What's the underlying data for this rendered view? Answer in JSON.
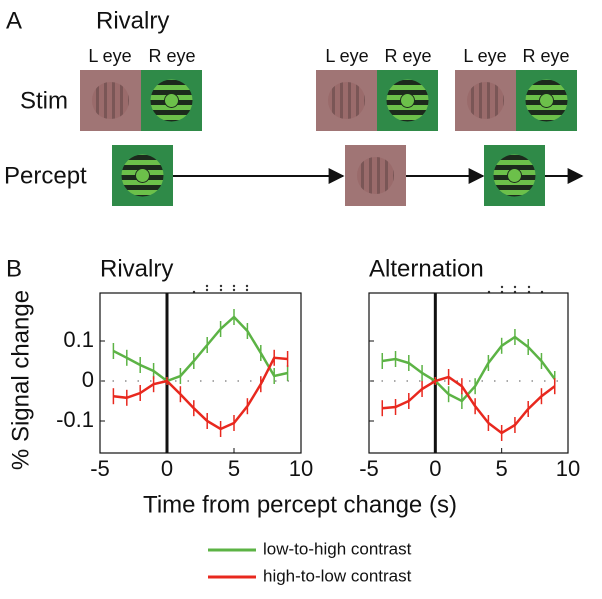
{
  "panel_a": {
    "label": "A",
    "title": "Rivalry",
    "eye_labels": [
      [
        "L eye",
        "R eye"
      ],
      [
        "L eye",
        "R eye"
      ],
      [
        "L eye",
        "R eye"
      ]
    ],
    "row_labels": [
      "Stim",
      "Percept"
    ]
  },
  "panel_b": {
    "label": "B"
  },
  "chart_data": {
    "type": "line",
    "xlabel": "Time from percept change (s)",
    "ylabel": "% Signal change",
    "xlim": [
      -5,
      10
    ],
    "xticks": [
      -5,
      0,
      5,
      10
    ],
    "ylim": [
      -0.18,
      0.22
    ],
    "yticks": [
      -0.1,
      0,
      0.1
    ],
    "x": [
      -4,
      -3,
      -2,
      -1,
      0,
      1,
      2,
      3,
      4,
      5,
      6,
      7,
      8,
      9
    ],
    "series": [
      {
        "name": "low-to-high contrast",
        "color": "#5cb345"
      },
      {
        "name": "high-to-low contrast",
        "color": "#e8281e"
      }
    ],
    "panels": [
      {
        "title": "Rivalry",
        "series": [
          {
            "values": [
              0.075,
              0.058,
              0.04,
              0.025,
              0,
              0.0125,
              0.05,
              0.09,
              0.13,
              0.16,
              0.125,
              0.07,
              0.0125,
              0.02
            ],
            "errors": [
              0.02,
              0.02,
              0.02,
              0.02,
              0.01,
              0.02,
              0.02,
              0.02,
              0.02,
              0.02,
              0.02,
              0.02,
              0.02,
              0.02
            ]
          },
          {
            "values": [
              -0.038,
              -0.042,
              -0.03,
              -0.008,
              0,
              -0.033,
              -0.068,
              -0.1,
              -0.12,
              -0.105,
              -0.063,
              -0.008,
              0.058,
              0.055
            ],
            "errors": [
              0.02,
              0.02,
              0.02,
              0.02,
              0.01,
              0.02,
              0.02,
              0.02,
              0.02,
              0.02,
              0.02,
              0.02,
              0.02,
              0.02
            ]
          }
        ]
      },
      {
        "title": "Alternation",
        "series": [
          {
            "values": [
              0.05,
              0.055,
              0.045,
              0.02,
              0,
              -0.033,
              -0.05,
              -0.013,
              0.045,
              0.088,
              0.11,
              0.085,
              0.05,
              0.005
            ],
            "errors": [
              0.02,
              0.02,
              0.02,
              0.02,
              0.01,
              0.02,
              0.02,
              0.02,
              0.02,
              0.02,
              0.02,
              0.02,
              0.02,
              0.02
            ]
          },
          {
            "values": [
              -0.068,
              -0.065,
              -0.05,
              -0.02,
              0,
              0.01,
              -0.013,
              -0.063,
              -0.105,
              -0.13,
              -0.11,
              -0.07,
              -0.038,
              -0.013
            ],
            "errors": [
              0.02,
              0.02,
              0.02,
              0.02,
              0.01,
              0.02,
              0.02,
              0.02,
              0.02,
              0.02,
              0.02,
              0.02,
              0.02,
              0.02
            ]
          }
        ]
      }
    ]
  }
}
